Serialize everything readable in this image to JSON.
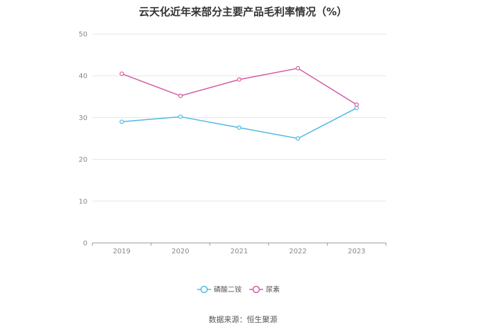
{
  "chart_data": {
    "type": "line",
    "title": "云天化近年来部分主要产品毛利率情况（%）",
    "categories": [
      "2019",
      "2020",
      "2021",
      "2022",
      "2023"
    ],
    "ylim": [
      0,
      50
    ],
    "yticks": [
      0,
      10,
      20,
      30,
      40,
      50
    ],
    "grid": true,
    "legend_position": "bottom-center",
    "series": [
      {
        "name": "磷酸二铵",
        "color": "#4db8e8",
        "values": [
          29.0,
          30.2,
          27.6,
          25.0,
          32.3
        ]
      },
      {
        "name": "尿素",
        "color": "#d45aa3",
        "values": [
          40.5,
          35.2,
          39.1,
          41.8,
          33.1
        ]
      }
    ]
  },
  "source": "数据来源：恒生聚源"
}
